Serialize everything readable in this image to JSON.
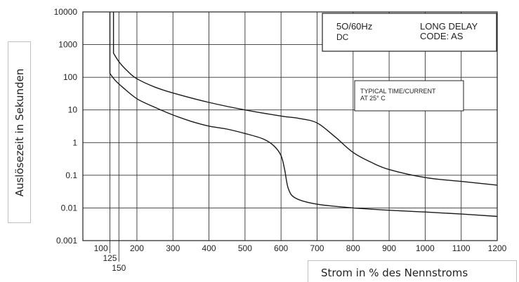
{
  "chart_data": {
    "type": "line",
    "xlabel": "Strom in % des Nennstroms",
    "ylabel": "Auslösezeit in Sekunden",
    "yscale": "log",
    "ylim": [
      0.001,
      10000
    ],
    "xlim": [
      50,
      1200
    ],
    "grid": true,
    "y_ticks": [
      "10000",
      "1000",
      "100",
      "10",
      "1",
      "0.1",
      "0.01",
      "0.001"
    ],
    "x_ticks_main": [
      "100",
      "200",
      "300",
      "400",
      "500",
      "600",
      "700",
      "800",
      "900",
      "1000",
      "1100",
      "1200"
    ],
    "x_ticks_low": [
      "125",
      "150"
    ],
    "annotations": {
      "box1": {
        "line1_left": "5O/60Hz",
        "line1_right": "LONG DELAY",
        "line2_left": "DC",
        "line2_right": "CODE: AS"
      },
      "box2": {
        "line1": "TYPICAL TIME/CURRENT",
        "line2": "AT 25° C"
      }
    },
    "series": [
      {
        "values": [
          [
            125,
            10000
          ],
          [
            125,
            130
          ],
          [
            140,
            80
          ],
          [
            160,
            50
          ],
          [
            200,
            22
          ],
          [
            250,
            12
          ],
          [
            300,
            7
          ],
          [
            350,
            4.5
          ],
          [
            400,
            3.2
          ],
          [
            450,
            2.6
          ],
          [
            500,
            1.9
          ],
          [
            550,
            1.3
          ],
          [
            580,
            0.8
          ],
          [
            600,
            0.4
          ],
          [
            610,
            0.15
          ],
          [
            620,
            0.04
          ],
          [
            640,
            0.02
          ],
          [
            700,
            0.013
          ],
          [
            800,
            0.01
          ],
          [
            900,
            0.0085
          ],
          [
            1000,
            0.0075
          ],
          [
            1100,
            0.0065
          ],
          [
            1200,
            0.0055
          ]
        ]
      },
      {
        "values": [
          [
            135,
            10000
          ],
          [
            135,
            550
          ],
          [
            150,
            300
          ],
          [
            175,
            150
          ],
          [
            200,
            90
          ],
          [
            250,
            50
          ],
          [
            300,
            33
          ],
          [
            400,
            17
          ],
          [
            500,
            10
          ],
          [
            600,
            6.5
          ],
          [
            650,
            5.5
          ],
          [
            700,
            4
          ],
          [
            750,
            1.5
          ],
          [
            800,
            0.5
          ],
          [
            850,
            0.25
          ],
          [
            900,
            0.15
          ],
          [
            1000,
            0.085
          ],
          [
            1100,
            0.065
          ],
          [
            1200,
            0.05
          ]
        ]
      }
    ]
  }
}
